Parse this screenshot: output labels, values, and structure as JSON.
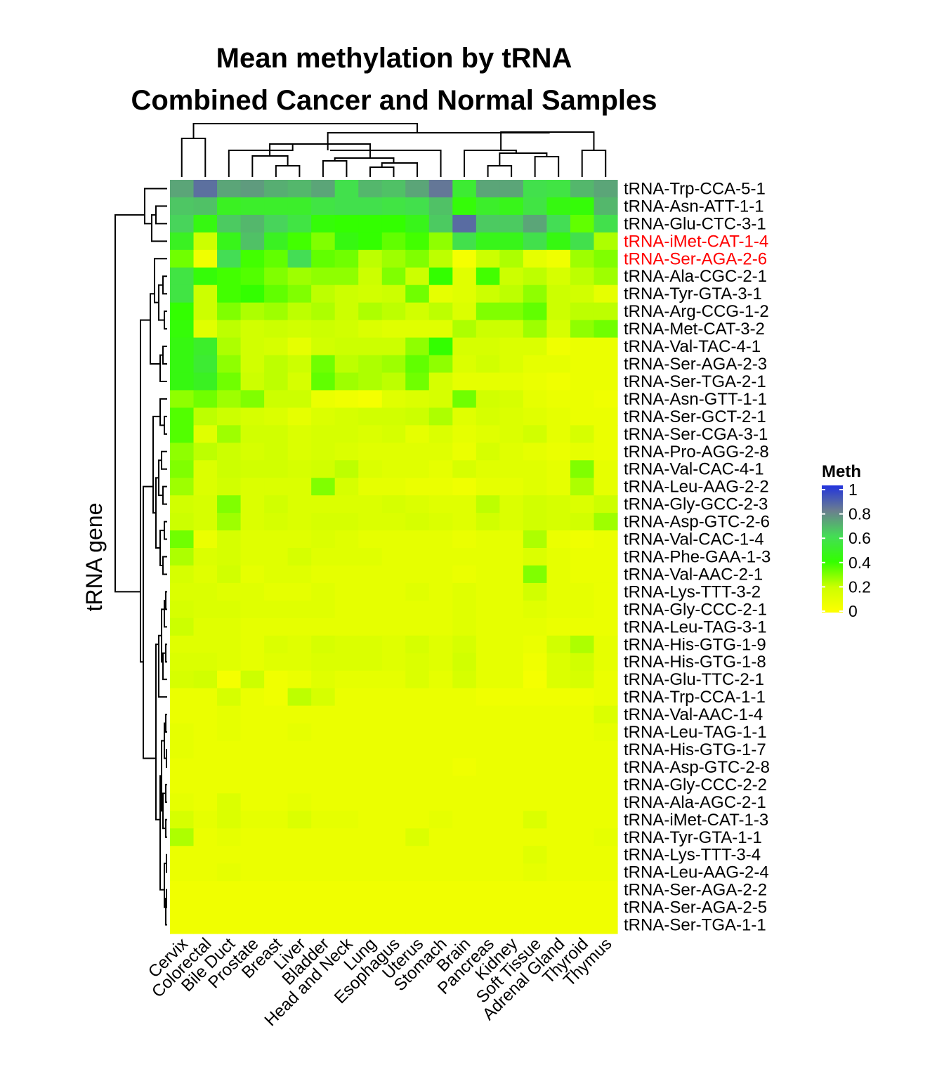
{
  "chart_data": {
    "type": "heatmap",
    "title": "Mean methylation by tRNA",
    "subtitle": "Combined Cancer and Normal Samples",
    "ylabel": "tRNA gene",
    "xlabel": "",
    "legend": {
      "title": "Meth",
      "placement": "right",
      "ticks": [
        {
          "value": 0,
          "label": "0"
        },
        {
          "value": 0.2,
          "label": "0.2"
        },
        {
          "value": 0.4,
          "label": "0.4"
        },
        {
          "value": 0.6,
          "label": "0.6"
        },
        {
          "value": 0.8,
          "label": "0.8"
        },
        {
          "value": 1,
          "label": "1"
        }
      ],
      "stops": [
        {
          "value": 0,
          "color": "#ffff00"
        },
        {
          "value": 0.2,
          "color": "#ccff00"
        },
        {
          "value": 0.4,
          "color": "#33ff00"
        },
        {
          "value": 0.6,
          "color": "#44dd55"
        },
        {
          "value": 0.8,
          "color": "#6b7f8f"
        },
        {
          "value": 1,
          "color": "#2233dd"
        }
      ]
    },
    "highlight_color": "#ff0000",
    "columns": [
      "Cervix",
      "Colorectal",
      "Bile Duct",
      "Prostate",
      "Breast",
      "Liver",
      "Bladder",
      "Head and Neck",
      "Lung",
      "Esophagus",
      "Uterus",
      "Stomach",
      "Brain",
      "Pancreas",
      "Kidney",
      "Soft Tissue",
      "Adrenal Gland",
      "Thyroid",
      "Thymus"
    ],
    "rows": [
      {
        "name": "tRNA-Trp-CCA-5-1",
        "highlight": false,
        "values": [
          0.72,
          0.84,
          0.72,
          0.74,
          0.7,
          0.68,
          0.72,
          0.58,
          0.68,
          0.66,
          0.72,
          0.82,
          0.52,
          0.72,
          0.72,
          0.58,
          0.56,
          0.68,
          0.72
        ]
      },
      {
        "name": "tRNA-Asn-ATT-1-1",
        "highlight": false,
        "values": [
          0.65,
          0.66,
          0.48,
          0.5,
          0.5,
          0.5,
          0.56,
          0.58,
          0.58,
          0.56,
          0.58,
          0.66,
          0.42,
          0.5,
          0.46,
          0.56,
          0.44,
          0.42,
          0.68
        ]
      },
      {
        "name": "tRNA-Glu-CTC-3-1",
        "highlight": false,
        "values": [
          0.62,
          0.44,
          0.64,
          0.68,
          0.62,
          0.56,
          0.42,
          0.4,
          0.4,
          0.4,
          0.46,
          0.64,
          0.85,
          0.64,
          0.64,
          0.72,
          0.6,
          0.34,
          0.58
        ]
      },
      {
        "name": "tRNA-iMet-CAT-1-4",
        "highlight": true,
        "values": [
          0.48,
          0.2,
          0.46,
          0.66,
          0.48,
          0.38,
          0.3,
          0.44,
          0.4,
          0.34,
          0.38,
          0.28,
          0.58,
          0.46,
          0.46,
          0.58,
          0.44,
          0.58,
          0.24
        ]
      },
      {
        "name": "tRNA-Ser-AGA-2-6",
        "highlight": true,
        "values": [
          0.32,
          0.06,
          0.6,
          0.38,
          0.34,
          0.6,
          0.34,
          0.32,
          0.22,
          0.26,
          0.3,
          0.22,
          0.04,
          0.2,
          0.24,
          0.1,
          0.06,
          0.26,
          0.3
        ]
      },
      {
        "name": "tRNA-Ala-CGC-2-1",
        "highlight": false,
        "values": [
          0.56,
          0.42,
          0.38,
          0.36,
          0.3,
          0.26,
          0.28,
          0.28,
          0.2,
          0.3,
          0.2,
          0.4,
          0.12,
          0.38,
          0.2,
          0.22,
          0.16,
          0.22,
          0.26
        ]
      },
      {
        "name": "tRNA-Tyr-GTA-3-1",
        "highlight": false,
        "values": [
          0.56,
          0.2,
          0.38,
          0.4,
          0.34,
          0.3,
          0.22,
          0.2,
          0.18,
          0.2,
          0.32,
          0.1,
          0.12,
          0.2,
          0.22,
          0.28,
          0.2,
          0.18,
          0.1
        ]
      },
      {
        "name": "tRNA-Arg-CCG-1-2",
        "highlight": false,
        "values": [
          0.4,
          0.2,
          0.3,
          0.24,
          0.26,
          0.22,
          0.24,
          0.2,
          0.24,
          0.22,
          0.18,
          0.22,
          0.14,
          0.3,
          0.3,
          0.34,
          0.2,
          0.22,
          0.22
        ]
      },
      {
        "name": "tRNA-Met-CAT-3-2",
        "highlight": false,
        "values": [
          0.42,
          0.12,
          0.22,
          0.18,
          0.2,
          0.18,
          0.2,
          0.18,
          0.14,
          0.12,
          0.12,
          0.12,
          0.24,
          0.2,
          0.2,
          0.26,
          0.16,
          0.28,
          0.32
        ]
      },
      {
        "name": "tRNA-Val-TAC-4-1",
        "highlight": false,
        "values": [
          0.44,
          0.5,
          0.24,
          0.18,
          0.16,
          0.1,
          0.18,
          0.2,
          0.2,
          0.2,
          0.28,
          0.4,
          0.16,
          0.16,
          0.14,
          0.14,
          0.06,
          0.08,
          0.08
        ]
      },
      {
        "name": "tRNA-Ser-AGA-2-3",
        "highlight": false,
        "values": [
          0.44,
          0.52,
          0.28,
          0.18,
          0.22,
          0.2,
          0.32,
          0.22,
          0.24,
          0.26,
          0.34,
          0.28,
          0.14,
          0.18,
          0.14,
          0.1,
          0.1,
          0.08,
          0.08
        ]
      },
      {
        "name": "tRNA-Ser-TGA-2-1",
        "highlight": false,
        "values": [
          0.44,
          0.48,
          0.32,
          0.2,
          0.22,
          0.16,
          0.34,
          0.26,
          0.24,
          0.22,
          0.32,
          0.16,
          0.1,
          0.1,
          0.1,
          0.08,
          0.06,
          0.08,
          0.08
        ]
      },
      {
        "name": "tRNA-Asn-GTT-1-1",
        "highlight": false,
        "values": [
          0.28,
          0.32,
          0.26,
          0.3,
          0.2,
          0.2,
          0.08,
          0.06,
          0.04,
          0.12,
          0.14,
          0.16,
          0.32,
          0.18,
          0.16,
          0.1,
          0.08,
          0.08,
          0.06
        ]
      },
      {
        "name": "tRNA-Ser-GCT-2-1",
        "highlight": false,
        "values": [
          0.36,
          0.22,
          0.2,
          0.16,
          0.14,
          0.1,
          0.14,
          0.16,
          0.18,
          0.18,
          0.2,
          0.24,
          0.12,
          0.16,
          0.14,
          0.12,
          0.1,
          0.08,
          0.08
        ]
      },
      {
        "name": "tRNA-Ser-CGA-3-1",
        "highlight": false,
        "values": [
          0.36,
          0.12,
          0.26,
          0.18,
          0.18,
          0.14,
          0.16,
          0.16,
          0.14,
          0.16,
          0.1,
          0.14,
          0.1,
          0.12,
          0.14,
          0.18,
          0.1,
          0.16,
          0.08
        ]
      },
      {
        "name": "tRNA-Pro-AGG-2-8",
        "highlight": false,
        "values": [
          0.28,
          0.22,
          0.2,
          0.16,
          0.18,
          0.14,
          0.16,
          0.14,
          0.12,
          0.12,
          0.12,
          0.12,
          0.08,
          0.16,
          0.12,
          0.1,
          0.08,
          0.1,
          0.08
        ]
      },
      {
        "name": "tRNA-Val-CAC-4-1",
        "highlight": false,
        "values": [
          0.3,
          0.14,
          0.2,
          0.18,
          0.18,
          0.16,
          0.18,
          0.22,
          0.14,
          0.12,
          0.12,
          0.1,
          0.16,
          0.12,
          0.12,
          0.12,
          0.1,
          0.3,
          0.1
        ]
      },
      {
        "name": "tRNA-Leu-AAG-2-2",
        "highlight": false,
        "values": [
          0.26,
          0.14,
          0.18,
          0.14,
          0.14,
          0.14,
          0.3,
          0.16,
          0.1,
          0.1,
          0.08,
          0.08,
          0.06,
          0.1,
          0.1,
          0.12,
          0.1,
          0.24,
          0.1
        ]
      },
      {
        "name": "tRNA-Gly-GCC-2-3",
        "highlight": false,
        "values": [
          0.18,
          0.16,
          0.3,
          0.14,
          0.18,
          0.14,
          0.14,
          0.14,
          0.14,
          0.16,
          0.14,
          0.12,
          0.12,
          0.22,
          0.14,
          0.18,
          0.16,
          0.14,
          0.2
        ]
      },
      {
        "name": "tRNA-Asp-GTC-2-6",
        "highlight": false,
        "values": [
          0.2,
          0.16,
          0.26,
          0.14,
          0.16,
          0.14,
          0.16,
          0.16,
          0.14,
          0.14,
          0.16,
          0.14,
          0.12,
          0.18,
          0.14,
          0.18,
          0.16,
          0.18,
          0.26
        ]
      },
      {
        "name": "tRNA-Val-CAC-1-4",
        "highlight": false,
        "values": [
          0.32,
          0.08,
          0.16,
          0.12,
          0.12,
          0.12,
          0.14,
          0.12,
          0.1,
          0.1,
          0.1,
          0.1,
          0.08,
          0.1,
          0.1,
          0.24,
          0.08,
          0.06,
          0.08
        ]
      },
      {
        "name": "tRNA-Phe-GAA-1-3",
        "highlight": false,
        "values": [
          0.24,
          0.14,
          0.16,
          0.12,
          0.12,
          0.16,
          0.12,
          0.12,
          0.12,
          0.1,
          0.1,
          0.1,
          0.1,
          0.1,
          0.1,
          0.14,
          0.1,
          0.08,
          0.08
        ]
      },
      {
        "name": "tRNA-Val-AAC-2-1",
        "highlight": false,
        "values": [
          0.16,
          0.12,
          0.18,
          0.1,
          0.12,
          0.12,
          0.1,
          0.1,
          0.1,
          0.1,
          0.1,
          0.1,
          0.08,
          0.1,
          0.1,
          0.3,
          0.1,
          0.08,
          0.08
        ]
      },
      {
        "name": "tRNA-Lys-TTT-3-2",
        "highlight": false,
        "values": [
          0.14,
          0.14,
          0.12,
          0.12,
          0.1,
          0.1,
          0.12,
          0.1,
          0.1,
          0.1,
          0.12,
          0.1,
          0.12,
          0.1,
          0.1,
          0.18,
          0.1,
          0.1,
          0.08
        ]
      },
      {
        "name": "tRNA-Gly-CCC-2-1",
        "highlight": false,
        "values": [
          0.16,
          0.14,
          0.14,
          0.12,
          0.12,
          0.12,
          0.12,
          0.1,
          0.1,
          0.1,
          0.1,
          0.1,
          0.12,
          0.1,
          0.1,
          0.12,
          0.1,
          0.1,
          0.08
        ]
      },
      {
        "name": "tRNA-Leu-TAG-3-1",
        "highlight": false,
        "values": [
          0.2,
          0.12,
          0.12,
          0.1,
          0.1,
          0.1,
          0.1,
          0.1,
          0.1,
          0.1,
          0.1,
          0.1,
          0.12,
          0.1,
          0.1,
          0.1,
          0.08,
          0.08,
          0.08
        ]
      },
      {
        "name": "tRNA-His-GTG-1-9",
        "highlight": false,
        "values": [
          0.12,
          0.12,
          0.12,
          0.1,
          0.14,
          0.12,
          0.16,
          0.14,
          0.14,
          0.12,
          0.16,
          0.12,
          0.16,
          0.1,
          0.1,
          0.08,
          0.18,
          0.24,
          0.1
        ]
      },
      {
        "name": "tRNA-His-GTG-1-8",
        "highlight": false,
        "values": [
          0.14,
          0.14,
          0.12,
          0.1,
          0.12,
          0.12,
          0.14,
          0.14,
          0.14,
          0.12,
          0.14,
          0.12,
          0.18,
          0.1,
          0.1,
          0.06,
          0.14,
          0.18,
          0.1
        ]
      },
      {
        "name": "tRNA-Glu-TTC-2-1",
        "highlight": false,
        "values": [
          0.16,
          0.18,
          0.04,
          0.2,
          0.06,
          0.08,
          0.12,
          0.1,
          0.1,
          0.1,
          0.14,
          0.1,
          0.16,
          0.1,
          0.1,
          0.04,
          0.14,
          0.16,
          0.08
        ]
      },
      {
        "name": "tRNA-Trp-CCA-1-1",
        "highlight": false,
        "values": [
          0.08,
          0.08,
          0.16,
          0.08,
          0.06,
          0.22,
          0.16,
          0.08,
          0.08,
          0.08,
          0.08,
          0.08,
          0.08,
          0.06,
          0.06,
          0.06,
          0.06,
          0.06,
          0.08
        ]
      },
      {
        "name": "tRNA-Val-AAC-1-4",
        "highlight": false,
        "values": [
          0.08,
          0.08,
          0.1,
          0.08,
          0.08,
          0.08,
          0.08,
          0.08,
          0.08,
          0.08,
          0.08,
          0.08,
          0.08,
          0.08,
          0.08,
          0.08,
          0.08,
          0.08,
          0.14
        ]
      },
      {
        "name": "tRNA-Leu-TAG-1-1",
        "highlight": false,
        "values": [
          0.1,
          0.08,
          0.1,
          0.08,
          0.08,
          0.1,
          0.08,
          0.08,
          0.08,
          0.08,
          0.08,
          0.08,
          0.08,
          0.08,
          0.08,
          0.08,
          0.08,
          0.08,
          0.1
        ]
      },
      {
        "name": "tRNA-His-GTG-1-7",
        "highlight": false,
        "values": [
          0.1,
          0.08,
          0.08,
          0.08,
          0.08,
          0.08,
          0.08,
          0.08,
          0.08,
          0.08,
          0.08,
          0.08,
          0.08,
          0.08,
          0.08,
          0.08,
          0.08,
          0.08,
          0.08
        ]
      },
      {
        "name": "tRNA-Asp-GTC-2-8",
        "highlight": false,
        "values": [
          0.08,
          0.08,
          0.08,
          0.08,
          0.08,
          0.08,
          0.08,
          0.08,
          0.08,
          0.08,
          0.08,
          0.08,
          0.06,
          0.08,
          0.08,
          0.08,
          0.08,
          0.08,
          0.08
        ]
      },
      {
        "name": "tRNA-Gly-CCC-2-2",
        "highlight": false,
        "values": [
          0.08,
          0.08,
          0.08,
          0.08,
          0.08,
          0.08,
          0.08,
          0.08,
          0.08,
          0.08,
          0.08,
          0.08,
          0.08,
          0.08,
          0.08,
          0.08,
          0.08,
          0.08,
          0.08
        ]
      },
      {
        "name": "tRNA-Ala-AGC-2-1",
        "highlight": false,
        "values": [
          0.1,
          0.08,
          0.14,
          0.08,
          0.08,
          0.1,
          0.08,
          0.08,
          0.08,
          0.08,
          0.08,
          0.08,
          0.08,
          0.08,
          0.08,
          0.08,
          0.08,
          0.08,
          0.08
        ]
      },
      {
        "name": "tRNA-iMet-CAT-1-3",
        "highlight": false,
        "values": [
          0.16,
          0.1,
          0.14,
          0.1,
          0.1,
          0.14,
          0.1,
          0.1,
          0.08,
          0.08,
          0.08,
          0.1,
          0.08,
          0.08,
          0.08,
          0.14,
          0.08,
          0.08,
          0.08
        ]
      },
      {
        "name": "tRNA-Tyr-GTA-1-1",
        "highlight": false,
        "values": [
          0.24,
          0.08,
          0.1,
          0.08,
          0.08,
          0.08,
          0.08,
          0.08,
          0.08,
          0.08,
          0.14,
          0.08,
          0.08,
          0.08,
          0.08,
          0.08,
          0.08,
          0.08,
          0.1
        ]
      },
      {
        "name": "tRNA-Lys-TTT-3-4",
        "highlight": false,
        "values": [
          0.08,
          0.08,
          0.08,
          0.08,
          0.08,
          0.08,
          0.08,
          0.08,
          0.08,
          0.08,
          0.08,
          0.08,
          0.08,
          0.08,
          0.08,
          0.12,
          0.08,
          0.08,
          0.08
        ]
      },
      {
        "name": "tRNA-Leu-AAG-2-4",
        "highlight": false,
        "values": [
          0.08,
          0.08,
          0.1,
          0.08,
          0.08,
          0.08,
          0.08,
          0.08,
          0.08,
          0.08,
          0.08,
          0.08,
          0.08,
          0.08,
          0.08,
          0.1,
          0.08,
          0.08,
          0.08
        ]
      },
      {
        "name": "tRNA-Ser-AGA-2-2",
        "highlight": false,
        "values": [
          0.06,
          0.06,
          0.06,
          0.06,
          0.06,
          0.06,
          0.06,
          0.06,
          0.06,
          0.06,
          0.06,
          0.06,
          0.06,
          0.06,
          0.06,
          0.06,
          0.06,
          0.06,
          0.06
        ]
      },
      {
        "name": "tRNA-Ser-AGA-2-5",
        "highlight": false,
        "values": [
          0.06,
          0.06,
          0.06,
          0.06,
          0.06,
          0.06,
          0.06,
          0.06,
          0.06,
          0.06,
          0.06,
          0.06,
          0.06,
          0.06,
          0.06,
          0.06,
          0.06,
          0.06,
          0.06
        ]
      },
      {
        "name": "tRNA-Ser-TGA-1-1",
        "highlight": false,
        "values": [
          0.06,
          0.06,
          0.06,
          0.06,
          0.06,
          0.06,
          0.06,
          0.06,
          0.06,
          0.06,
          0.06,
          0.06,
          0.06,
          0.06,
          0.06,
          0.06,
          0.06,
          0.06,
          0.06
        ]
      }
    ]
  }
}
